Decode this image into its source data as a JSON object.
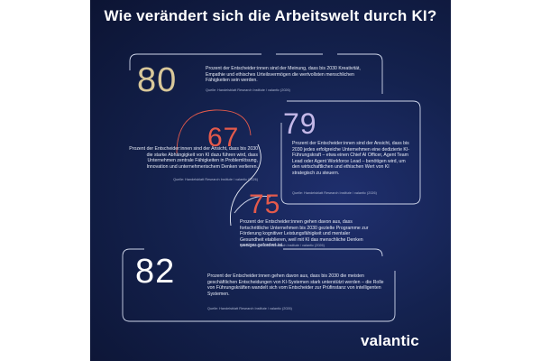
{
  "title": "Wie verändert sich die Arbeitswelt durch KI?",
  "colors": {
    "background": "#14224f",
    "gold": "#d9c89a",
    "red": "#e45a4b",
    "lavender": "#c4b8e8",
    "white": "#ffffff",
    "frame": "#cfd6ea"
  },
  "stats": [
    {
      "value": "80",
      "text": "Prozent der Entscheider:innen sind der Meinung, dass bis 2030 Kreativität, Empathie und ethisches Urteilsvermögen die wertvollsten menschlichen Fähigkeiten sein werden.",
      "source": "Quelle: Handelsblatt Research Institute / valantic (2026)"
    },
    {
      "value": "67",
      "text": "Prozent der Entscheider:innen sind der Ansicht, dass bis 2030 die starke Abhängigkeit von KI dazu führen wird, dass Unternehmen zentrale Fähigkeiten in Problemlösung, Innovation und unternehmerischem Denken verlieren.",
      "source": "Quelle: Handelsblatt Research Institute / valantic (2026)"
    },
    {
      "value": "79",
      "text": "Prozent der Entscheider:innen sind der Ansicht, dass bis 2030 jedes erfolgreiche Unternehmen eine dedizierte KI-Führungskraft – etwa einen Chief AI Officer, Agent Team Lead oder Agent Workforce Lead – benötigen wird, um den wirtschaftlichen und ethischen Wert von KI strategisch zu steuern.",
      "source": "Quelle: Handelsblatt Research Institute / valantic (2026)"
    },
    {
      "value": "75",
      "text": "Prozent der Entscheider:innen gehen davon aus, dass fortschrittliche Unternehmen bis 2030 gezielte Programme zur Förderung kognitiver Leistungsfähigkeit und mentaler Gesundheit etablieren, weil mit KI das menschliche Denken weniger gefordert ist.",
      "source": "Quelle: Handelsblatt Research Institute / valantic (2026)"
    },
    {
      "value": "82",
      "text": "Prozent der Entscheider:innen gehen davon aus, dass bis 2030 die meisten geschäftlichen Entscheidungen von KI-Systemen stark unterstützt werden – die Rolle von Führungskräften wandelt sich vom Entscheider zur Prüfinstanz von intelligenten Systemen.",
      "source": "Quelle: Handelsblatt Research Institute / valantic (2026)"
    }
  ],
  "brand": "valantic"
}
